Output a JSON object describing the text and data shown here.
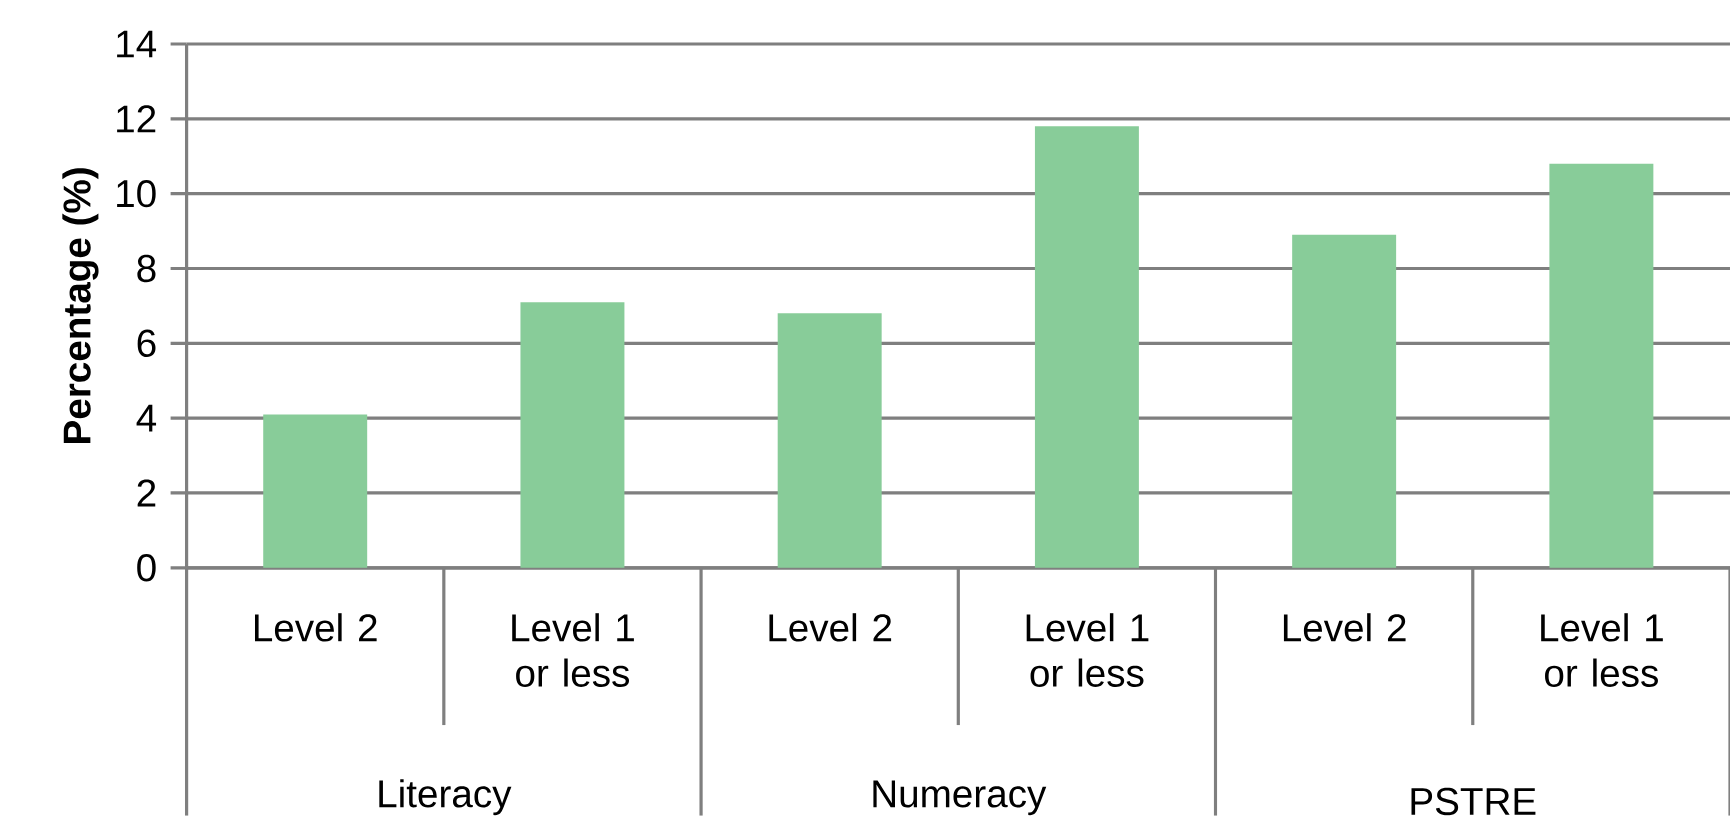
{
  "chart_data": {
    "type": "bar",
    "ylabel": "Percentage (%)",
    "categories": [
      "Level 2",
      "Level 1 or less",
      "Level 2",
      "Level 1 or less",
      "Level 2",
      "Level 1 or less"
    ],
    "values": [
      4.1,
      7.1,
      6.8,
      11.8,
      8.9,
      10.8
    ],
    "color": "#88cc99",
    "annotations": [
      "Literacy",
      "Numeracy",
      "PSTRE"
    ],
    "ylim": [
      0,
      14
    ],
    "yticks": [
      0,
      2,
      4,
      6,
      8,
      10,
      12,
      14
    ],
    "grid": "y"
  }
}
